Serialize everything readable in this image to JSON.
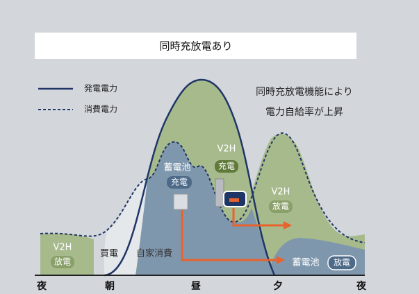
{
  "title": "同時充放電あり",
  "legend": [
    "発電電力",
    "消費電力"
  ],
  "annotation": [
    "同時充放電機能により",
    "電力自給率が上昇"
  ],
  "labels": {
    "v2h_discharge_left": [
      "V2H",
      "放電"
    ],
    "buy": "買電",
    "self_consumption": "自家消費",
    "battery_charge": [
      "蓄電池",
      "充電"
    ],
    "v2h_charge": [
      "V2H",
      "充電"
    ],
    "v2h_discharge_right": [
      "V2H",
      "放電"
    ],
    "battery_discharge": [
      "蓄電池",
      "放電"
    ]
  },
  "x_axis": [
    "夜",
    "朝",
    "昼",
    "夕",
    "夜"
  ]
}
